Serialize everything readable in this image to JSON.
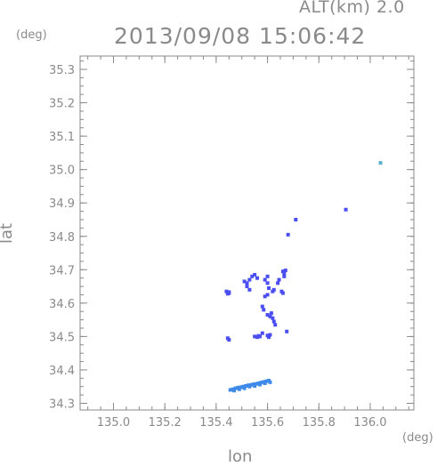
{
  "header": {
    "altitude_label": "ALT(km) 2.0",
    "timestamp": "2013/09/08 15:06:42"
  },
  "chart_data": {
    "type": "scatter",
    "title": "2013/09/08 15:06:42",
    "subtitle": "ALT(km) 2.0",
    "xlabel": "lon",
    "ylabel": "lat",
    "x_unit": "(deg)",
    "y_unit": "(deg)",
    "xlim": [
      134.87,
      136.17
    ],
    "ylim": [
      34.28,
      35.34
    ],
    "x_ticks": [
      "135.0",
      "135.2",
      "135.4",
      "135.6",
      "135.8",
      "136.0"
    ],
    "y_ticks": [
      "34.3",
      "34.4",
      "34.5",
      "34.6",
      "34.7",
      "34.8",
      "34.9",
      "35.0",
      "35.1",
      "35.2",
      "35.3"
    ],
    "grid": false,
    "colors": {
      "cluster": "#4a4ef0",
      "band": "#3f8ae8",
      "axis": "#8a8a8a",
      "sparse": "#58b0d0"
    },
    "series": [
      {
        "points": [
          [
            135.44,
            34.635
          ],
          [
            135.45,
            34.63
          ],
          [
            135.445,
            34.628
          ],
          [
            135.45,
            34.633
          ],
          [
            135.445,
            34.495
          ],
          [
            135.45,
            34.49
          ],
          [
            135.51,
            34.665
          ],
          [
            135.52,
            34.66
          ],
          [
            135.53,
            34.67
          ],
          [
            135.54,
            34.68
          ],
          [
            135.55,
            34.685
          ],
          [
            135.56,
            34.675
          ],
          [
            135.53,
            34.64
          ],
          [
            135.52,
            34.65
          ],
          [
            135.59,
            34.67
          ],
          [
            135.6,
            34.68
          ],
          [
            135.6,
            34.66
          ],
          [
            135.605,
            34.645
          ],
          [
            135.59,
            34.62
          ],
          [
            135.6,
            34.625
          ],
          [
            135.62,
            34.635
          ],
          [
            135.625,
            34.64
          ],
          [
            135.64,
            34.66
          ],
          [
            135.645,
            34.67
          ],
          [
            135.66,
            34.695
          ],
          [
            135.665,
            34.69
          ],
          [
            135.67,
            34.698
          ],
          [
            135.665,
            34.68
          ],
          [
            135.655,
            34.635
          ],
          [
            135.66,
            34.63
          ],
          [
            135.58,
            34.59
          ],
          [
            135.585,
            34.58
          ],
          [
            135.6,
            34.565
          ],
          [
            135.61,
            34.56
          ],
          [
            135.62,
            34.555
          ],
          [
            135.615,
            34.57
          ],
          [
            135.625,
            34.545
          ],
          [
            135.63,
            34.535
          ],
          [
            135.55,
            34.5
          ],
          [
            135.56,
            34.498
          ],
          [
            135.565,
            34.502
          ],
          [
            135.57,
            34.5
          ],
          [
            135.6,
            34.503
          ],
          [
            135.605,
            34.498
          ],
          [
            135.61,
            34.505
          ],
          [
            135.58,
            34.51
          ],
          [
            135.675,
            34.515
          ],
          [
            135.905,
            34.88
          ],
          [
            135.71,
            34.85
          ],
          [
            135.68,
            34.805
          ]
        ]
      },
      {
        "points": [
          [
            135.455,
            34.34
          ],
          [
            135.465,
            34.342
          ],
          [
            135.475,
            34.345
          ],
          [
            135.485,
            34.347
          ],
          [
            135.495,
            34.348
          ],
          [
            135.505,
            34.35
          ],
          [
            135.515,
            34.352
          ],
          [
            135.525,
            34.354
          ],
          [
            135.535,
            34.355
          ],
          [
            135.545,
            34.357
          ],
          [
            135.555,
            34.358
          ],
          [
            135.565,
            34.36
          ],
          [
            135.575,
            34.362
          ],
          [
            135.585,
            34.364
          ],
          [
            135.595,
            34.366
          ],
          [
            135.605,
            34.368
          ],
          [
            135.47,
            34.338
          ],
          [
            135.49,
            34.342
          ],
          [
            135.51,
            34.345
          ],
          [
            135.53,
            34.35
          ],
          [
            135.55,
            34.352
          ],
          [
            135.57,
            34.356
          ],
          [
            135.59,
            34.36
          ],
          [
            135.61,
            34.363
          ],
          [
            136.04,
            35.02
          ]
        ]
      }
    ]
  }
}
